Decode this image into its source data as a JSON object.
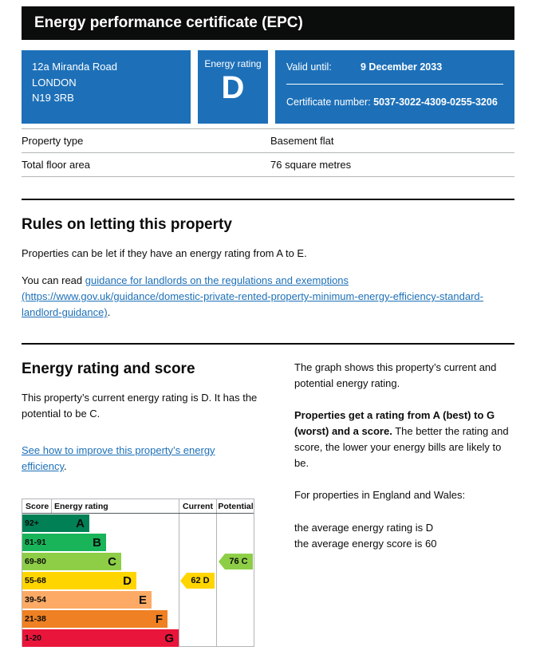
{
  "title_bar": {
    "title": "Energy performance certificate (EPC)"
  },
  "summary": {
    "address_line1": "12a Miranda Road",
    "address_line2": "LONDON",
    "address_line3": "N19 3RB",
    "rating_label": "Energy rating",
    "rating": "D",
    "valid_until_label": "Valid until:",
    "valid_until": "9 December 2033",
    "certificate_number_label": "Certificate number:",
    "certificate_number": "5037-3022-4309-0255-3206",
    "panel_color": "#1d70b8"
  },
  "property_table": {
    "rows": [
      {
        "label": "Property type",
        "value": "Basement flat"
      },
      {
        "label": "Total floor area",
        "value": "76 square metres"
      }
    ]
  },
  "rules_section": {
    "heading": "Rules on letting this property",
    "para1": "Properties can be let if they have an energy rating from A to E.",
    "para2_prefix": "You can read ",
    "link_text": "guidance for landlords on the regulations and exemptions (https://www.gov.uk/guidance/domestic-private-rented-property-minimum-energy-efficiency-standard-landlord-guidance)",
    "para2_suffix": "."
  },
  "energy_section": {
    "heading": "Energy rating and score",
    "para1": "This property’s current energy rating is D. It has the potential to be C.",
    "improve_link": "See how to improve this property’s energy efficiency",
    "improve_link_suffix": ".",
    "right": {
      "para1": "The graph shows this property’s current and potential energy rating.",
      "para2_bold": "Properties get a rating from A (best) to G (worst) and a score.",
      "para2_rest": " The better the rating and score, the lower your energy bills are likely to be.",
      "para3": "For properties in England and Wales:",
      "avg_rating_line": "the average energy rating is D",
      "avg_score_line": "the average energy score is 60"
    }
  },
  "chart_data": {
    "type": "epc-rating-chart",
    "headers": {
      "score": "Score",
      "rating": "Energy rating",
      "current": "Current",
      "potential": "Potential"
    },
    "bands": [
      {
        "score": "92+",
        "letter": "A",
        "color": "#008054",
        "width_pct": 30
      },
      {
        "score": "81-91",
        "letter": "B",
        "color": "#19b459",
        "width_pct": 43
      },
      {
        "score": "69-80",
        "letter": "C",
        "color": "#8dce46",
        "width_pct": 55
      },
      {
        "score": "55-68",
        "letter": "D",
        "color": "#ffd500",
        "width_pct": 67
      },
      {
        "score": "39-54",
        "letter": "E",
        "color": "#fcaa65",
        "width_pct": 79
      },
      {
        "score": "21-38",
        "letter": "F",
        "color": "#ef8023",
        "width_pct": 91
      },
      {
        "score": "1-20",
        "letter": "G",
        "color": "#e9153b",
        "width_pct": 100
      }
    ],
    "current": {
      "score": 62,
      "letter": "D",
      "label": "62 D",
      "band_index": 3,
      "color": "#ffd500"
    },
    "potential": {
      "score": 76,
      "letter": "C",
      "label": "76 C",
      "band_index": 2,
      "color": "#8dce46"
    }
  }
}
